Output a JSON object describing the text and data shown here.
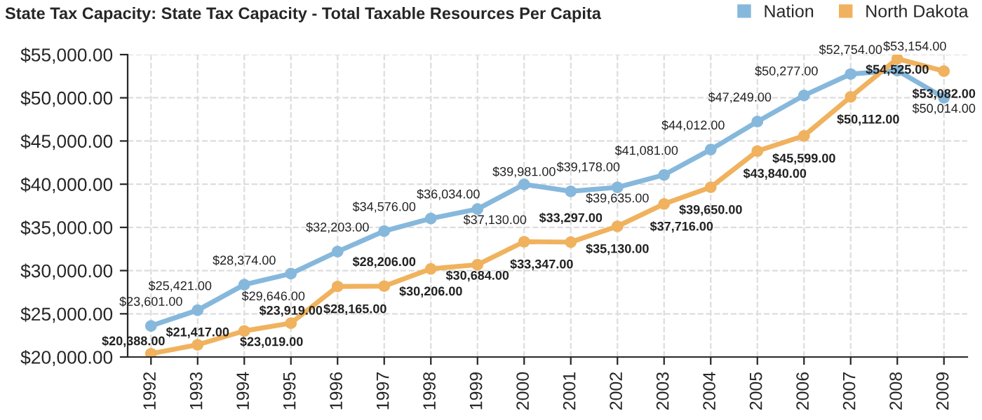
{
  "chart_data": {
    "type": "line",
    "title": "State Tax Capacity: State Tax Capacity - Total Taxable Resources Per Capita",
    "categories": [
      "1992",
      "1993",
      "1994",
      "1995",
      "1996",
      "1997",
      "1998",
      "1999",
      "2000",
      "2001",
      "2002",
      "2003",
      "2004",
      "2005",
      "2006",
      "2007",
      "2008",
      "2009"
    ],
    "series": [
      {
        "name": "Nation",
        "color": "#86b8dc",
        "values": [
          23601,
          25421,
          28374,
          29646,
          32203,
          34576,
          36034,
          37130,
          39981,
          39178,
          39635,
          41081,
          44012,
          47249,
          50277,
          52754,
          53154,
          50014
        ],
        "value_labels": [
          "$23,601.00",
          "$25,421.00",
          "$28,374.00",
          "$29,646.00",
          "$32,203.00",
          "$34,576.00",
          "$36,034.00",
          "$37,130.00",
          "$39,981.00",
          "$39,178.00",
          "$39,635.00",
          "$41,081.00",
          "$44,012.00",
          "$47,249.00",
          "$50,277.00",
          "$52,754.00",
          "$53,154.00",
          "$50,014.00"
        ]
      },
      {
        "name": "North Dakota",
        "color": "#f0b25e",
        "values": [
          20388,
          21417,
          23019,
          23919,
          28165,
          28206,
          30206,
          30684,
          33347,
          33297,
          35130,
          37716,
          39650,
          43840,
          45599,
          50112,
          54525,
          53082
        ],
        "value_labels": [
          "$20,388.00",
          "$21,417.00",
          "$23,019.00",
          "$23,919.00",
          "$28,165.00",
          "$28,206.00",
          "$30,206.00",
          "$30,684.00",
          "$33,347.00",
          "$33,297.00",
          "$35,130.00",
          "$37,716.00",
          "$39,650.00",
          "$43,840.00",
          "$45,599.00",
          "$50,112.00",
          "$54,525.00",
          "$53,082.00"
        ]
      }
    ],
    "ylim": [
      20000,
      55000
    ],
    "yticks": [
      {
        "value": 20000,
        "label": "$20,000.00"
      },
      {
        "value": 25000,
        "label": "$25,000.00"
      },
      {
        "value": 30000,
        "label": "$30,000.00"
      },
      {
        "value": 35000,
        "label": "$35,000.00"
      },
      {
        "value": 40000,
        "label": "$40,000.00"
      },
      {
        "value": 45000,
        "label": "$45,000.00"
      },
      {
        "value": 50000,
        "label": "$50,000.00"
      },
      {
        "value": 55000,
        "label": "$55,000.00"
      }
    ],
    "grid": true,
    "legend": "top right",
    "marker": "circle",
    "line_style": "solid"
  }
}
